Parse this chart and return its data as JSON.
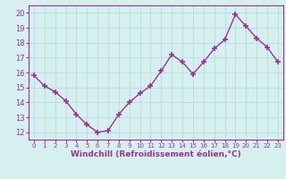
{
  "x": [
    0,
    1,
    2,
    3,
    4,
    5,
    6,
    7,
    8,
    9,
    10,
    11,
    12,
    13,
    14,
    15,
    16,
    17,
    18,
    19,
    20,
    21,
    22,
    23
  ],
  "y": [
    15.8,
    15.1,
    14.7,
    14.1,
    13.2,
    12.5,
    12.0,
    12.1,
    13.2,
    14.0,
    14.6,
    15.1,
    16.1,
    17.2,
    16.7,
    15.9,
    16.7,
    17.6,
    18.2,
    19.9,
    19.1,
    18.3,
    17.7,
    16.7
  ],
  "line_color": "#993399",
  "marker": "+",
  "marker_size": 4,
  "marker_linewidth": 1.2,
  "line_width": 1.0,
  "xlabel": "Windchill (Refroidissement éolien,°C)",
  "xlabel_fontsize": 6.5,
  "xlim": [
    -0.5,
    23.5
  ],
  "ylim": [
    11.5,
    20.5
  ],
  "yticks": [
    12,
    13,
    14,
    15,
    16,
    17,
    18,
    19,
    20
  ],
  "xticks": [
    0,
    1,
    2,
    3,
    4,
    5,
    6,
    7,
    8,
    9,
    10,
    11,
    12,
    13,
    14,
    15,
    16,
    17,
    18,
    19,
    20,
    21,
    22,
    23
  ],
  "xtick_fontsize": 5.0,
  "ytick_fontsize": 6.0,
  "background_color": "#d6f0f0",
  "grid_color": "#c0dede",
  "line_label_color": "#993399"
}
